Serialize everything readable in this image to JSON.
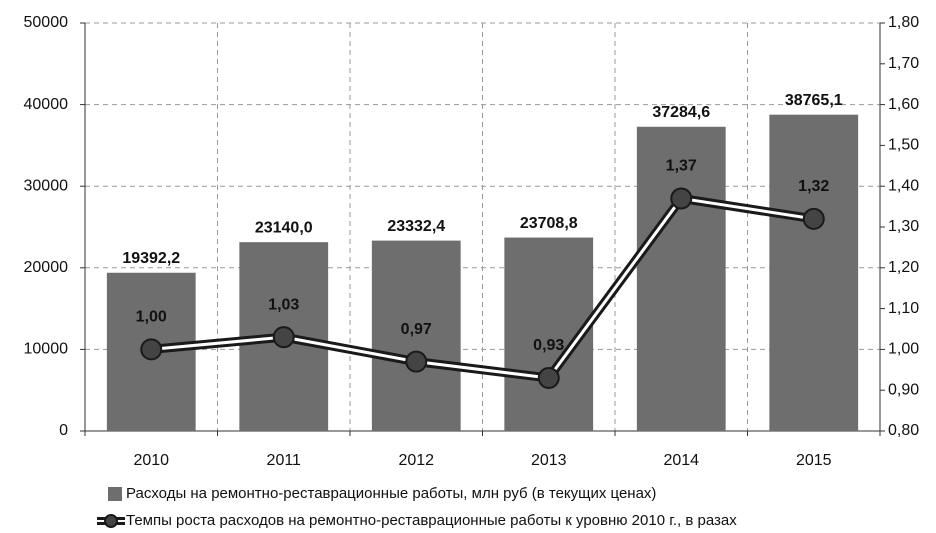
{
  "chart_data": {
    "type": "bar",
    "categories": [
      "2010",
      "2011",
      "2012",
      "2013",
      "2014",
      "2015"
    ],
    "series": [
      {
        "name": "Расходы на ремонтно-реставрационные работы, млн  руб (в текущих ценах)",
        "type": "bar",
        "color": "#6e6e6e",
        "values": [
          19392.2,
          23140.0,
          23332.4,
          23708.8,
          37284.6,
          38765.1
        ],
        "value_labels": [
          "19392,2",
          "23140,0",
          "23332,4",
          "23708,8",
          "37284,6",
          "38765,1"
        ]
      },
      {
        "name": "Темпы роста расходов на ремонтно-реставрационные работы к уровню 2010 г., в разах",
        "type": "line",
        "axis": "y2",
        "color": "#1a1a1a",
        "values": [
          1.0,
          1.03,
          0.97,
          0.93,
          1.37,
          1.32
        ],
        "value_labels": [
          "1,00",
          "1,03",
          "0,97",
          "0,93",
          "1,37",
          "1,32"
        ]
      }
    ],
    "ylim": [
      0,
      50000
    ],
    "yticks": [
      0,
      10000,
      20000,
      30000,
      40000,
      50000
    ],
    "y2lim": [
      0.8,
      1.8
    ],
    "y2ticks": [
      {
        "value": 0.8,
        "label": "0,80"
      },
      {
        "value": 0.9,
        "label": "0,90"
      },
      {
        "value": 1.0,
        "label": "1,00"
      },
      {
        "value": 1.1,
        "label": "1,10"
      },
      {
        "value": 1.2,
        "label": "1,20"
      },
      {
        "value": 1.3,
        "label": "1,30"
      },
      {
        "value": 1.4,
        "label": "1,40"
      },
      {
        "value": 1.5,
        "label": "1,50"
      },
      {
        "value": 1.6,
        "label": "1,60"
      },
      {
        "value": 1.7,
        "label": "1,70"
      },
      {
        "value": 1.8,
        "label": "1,80"
      }
    ],
    "grid": true,
    "legend": "bottom"
  }
}
